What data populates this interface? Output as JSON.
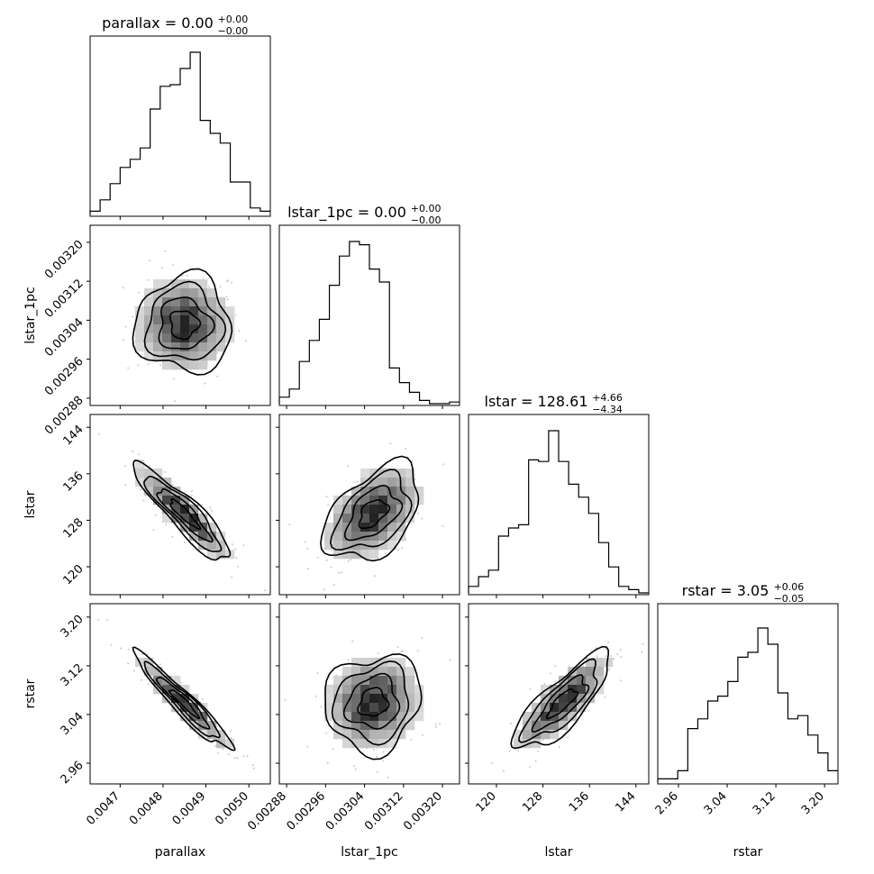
{
  "chart_data": {
    "type": "corner",
    "params": [
      "parallax",
      "lstar_1pc",
      "lstar",
      "rstar"
    ],
    "titles": [
      {
        "param": "parallax",
        "main": "parallax = 0.00",
        "plus": "+0.00",
        "minus": "−0.00"
      },
      {
        "param": "lstar_1pc",
        "main": "lstar_1pc = 0.00",
        "plus": "+0.00",
        "minus": "−0.00"
      },
      {
        "param": "lstar",
        "main": "lstar = 128.61",
        "plus": "+4.66",
        "minus": "−4.34"
      },
      {
        "param": "rstar",
        "main": "rstar = 3.05",
        "plus": "+0.06",
        "minus": "−0.05"
      }
    ],
    "ranges": [
      [
        0.00463,
        0.00505
      ],
      [
        0.002865,
        0.003235
      ],
      [
        115.2,
        146.2
      ],
      [
        2.926,
        3.222
      ]
    ],
    "ticks": [
      [
        {
          "v": 0.0047,
          "l": "0.0047"
        },
        {
          "v": 0.0048,
          "l": "0.0048"
        },
        {
          "v": 0.0049,
          "l": "0.0049"
        },
        {
          "v": 0.005,
          "l": "0.0050"
        }
      ],
      [
        {
          "v": 0.00288,
          "l": "0.00288"
        },
        {
          "v": 0.00296,
          "l": "0.00296"
        },
        {
          "v": 0.00304,
          "l": "0.00304"
        },
        {
          "v": 0.00312,
          "l": "0.00312"
        },
        {
          "v": 0.0032,
          "l": "0.00320"
        }
      ],
      [
        {
          "v": 120,
          "l": "120"
        },
        {
          "v": 128,
          "l": "128"
        },
        {
          "v": 136,
          "l": "136"
        },
        {
          "v": 144,
          "l": "144"
        }
      ],
      [
        {
          "v": 2.96,
          "l": "2.96"
        },
        {
          "v": 3.04,
          "l": "3.04"
        },
        {
          "v": 3.12,
          "l": "3.12"
        },
        {
          "v": 3.2,
          "l": "3.20"
        }
      ]
    ],
    "histograms": [
      [
        0.02,
        0.09,
        0.19,
        0.29,
        0.34,
        0.41,
        0.65,
        0.79,
        0.8,
        0.9,
        1.0,
        0.58,
        0.5,
        0.44,
        0.2,
        0.2,
        0.04,
        0.02
      ],
      [
        0.04,
        0.09,
        0.26,
        0.39,
        0.52,
        0.73,
        0.91,
        1.0,
        0.98,
        0.83,
        0.75,
        0.22,
        0.13,
        0.07,
        0.02,
        0.0,
        0.0,
        0.01
      ],
      [
        0.04,
        0.1,
        0.14,
        0.35,
        0.4,
        0.42,
        0.82,
        0.81,
        1.0,
        0.81,
        0.67,
        0.59,
        0.49,
        0.31,
        0.16,
        0.04,
        0.02,
        0.0
      ],
      [
        0.02,
        0.02,
        0.07,
        0.33,
        0.39,
        0.5,
        0.53,
        0.62,
        0.77,
        0.8,
        0.95,
        0.85,
        0.55,
        0.39,
        0.41,
        0.29,
        0.18,
        0.07
      ]
    ],
    "correlations": {
      "1_0": 0.0,
      "2_0": -0.9,
      "2_1": 0.45,
      "3_0": -0.95,
      "3_1": 0.1,
      "3_2": 0.8
    },
    "axis_labels": {
      "x": [
        "parallax",
        "lstar_1pc",
        "lstar",
        "rstar"
      ],
      "y": [
        "",
        "lstar_1pc",
        "lstar",
        "rstar"
      ]
    }
  }
}
